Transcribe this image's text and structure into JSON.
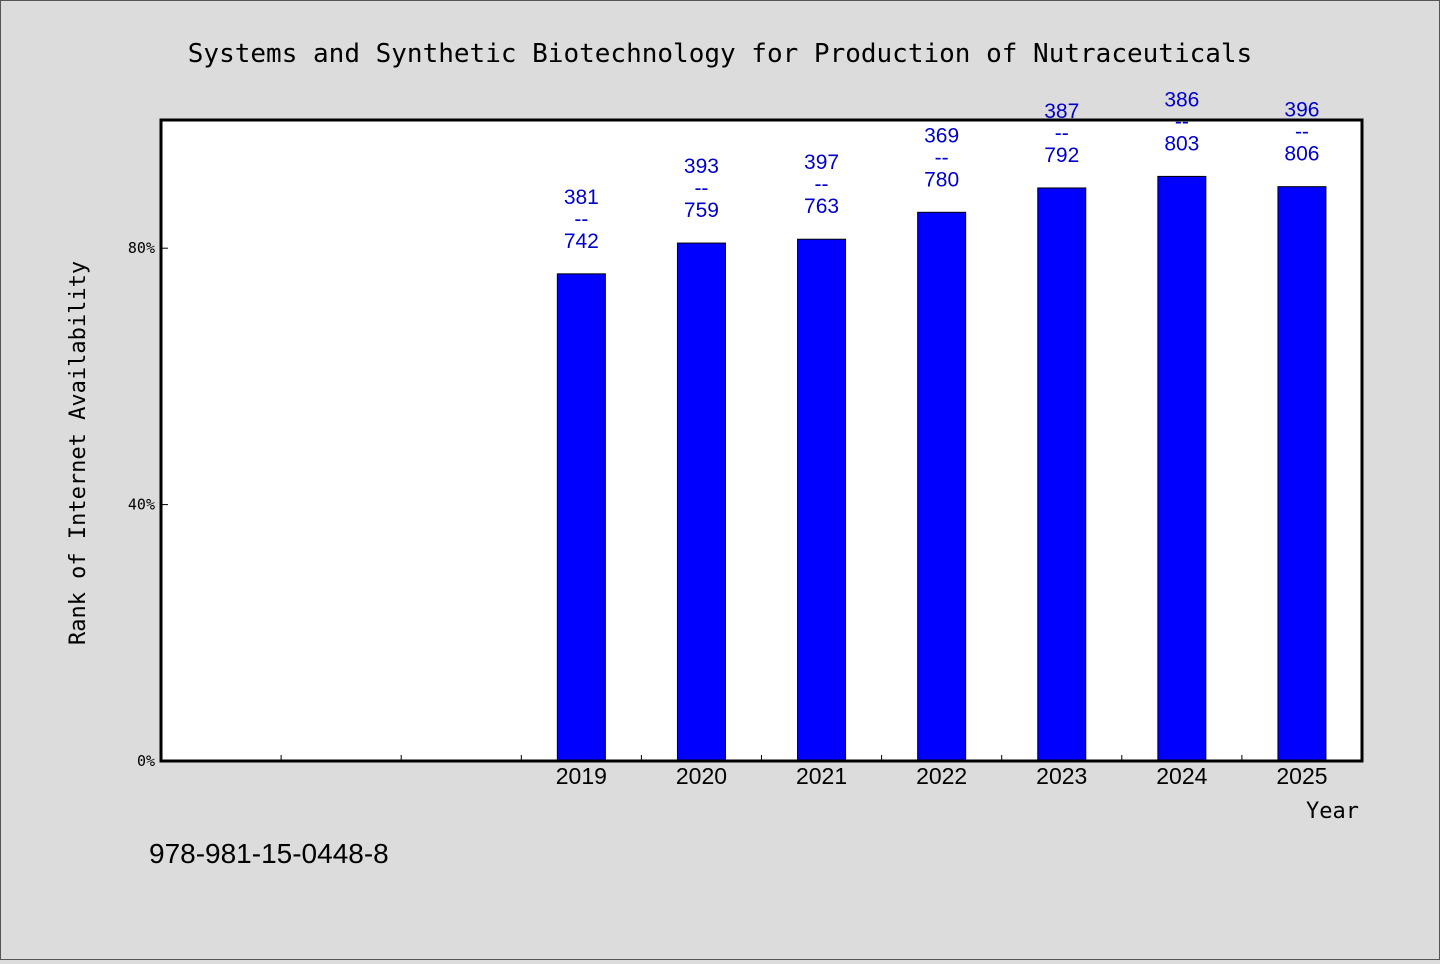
{
  "chart_data": {
    "type": "bar",
    "title": "Systems and Synthetic Biotechnology for Production of Nutraceuticals",
    "xlabel": "Year",
    "ylabel": "Rank of Internet Availability",
    "categories": [
      "",
      "",
      "",
      "2019",
      "2020",
      "2021",
      "2022",
      "2023",
      "2024",
      "2025"
    ],
    "values": [
      null,
      null,
      null,
      76.0,
      80.8,
      81.4,
      85.6,
      89.4,
      91.2,
      89.6
    ],
    "data_labels": [
      null,
      null,
      null,
      [
        "381",
        "--",
        "742"
      ],
      [
        "393",
        "--",
        "759"
      ],
      [
        "397",
        "--",
        "763"
      ],
      [
        "369",
        "--",
        "780"
      ],
      [
        "387",
        "--",
        "792"
      ],
      [
        "386",
        "--",
        "803"
      ],
      [
        "396",
        "--",
        "806"
      ]
    ],
    "ylim": [
      0,
      100
    ],
    "yticks": [
      0,
      40,
      80
    ],
    "ytick_labels": [
      "0%",
      "40%",
      "80%"
    ],
    "grid": false,
    "legend": "none",
    "colors": {
      "bar": "#0000ff",
      "label": "#0000cc",
      "plot_bg": "#ffffff",
      "page_bg": "#dcdcdc"
    }
  },
  "footnote": "978-981-15-0448-8"
}
